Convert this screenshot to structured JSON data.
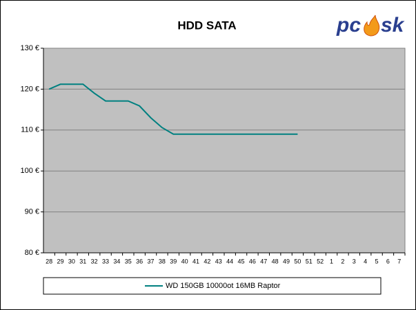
{
  "chart_data": {
    "type": "line",
    "title": "HDD SATA",
    "categories": [
      "28",
      "29",
      "30",
      "31",
      "32",
      "33",
      "34",
      "35",
      "36",
      "37",
      "38",
      "39",
      "40",
      "41",
      "42",
      "43",
      "44",
      "45",
      "46",
      "47",
      "48",
      "49",
      "50",
      "51",
      "52",
      "1",
      "2",
      "3",
      "4",
      "5",
      "6",
      "7"
    ],
    "series": [
      {
        "name": "WD 150GB 10000ot 16MB Raptor",
        "color": "#008080",
        "values": [
          120.0,
          121.2,
          121.2,
          121.2,
          119.0,
          117.1,
          117.1,
          117.1,
          115.9,
          113.0,
          110.6,
          109.0,
          109.0,
          109.0,
          109.0,
          109.0,
          109.0,
          109.0,
          109.0,
          109.0,
          109.0,
          109.0,
          109.0,
          null,
          null,
          null,
          null,
          null,
          null,
          null,
          null,
          null
        ]
      }
    ],
    "ylim": [
      80,
      130
    ],
    "yticks": [
      {
        "value": 80,
        "label": "80 €"
      },
      {
        "value": 90,
        "label": "90 €"
      },
      {
        "value": 100,
        "label": "100 €"
      },
      {
        "value": 110,
        "label": "110 €"
      },
      {
        "value": 120,
        "label": "120 €"
      },
      {
        "value": 130,
        "label": "130 €"
      }
    ],
    "grid": true,
    "plot_background": "#c0c0c0"
  },
  "logo": {
    "left": "pc",
    "right": "sk"
  }
}
